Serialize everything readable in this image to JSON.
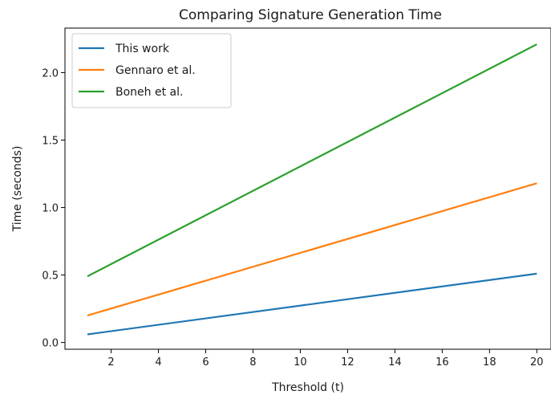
{
  "chart_data": {
    "type": "line",
    "title": "Comparing Signature Generation Time",
    "xlabel": "Threshold (t)",
    "ylabel": "Time (seconds)",
    "xlim": [
      0.05,
      20.6
    ],
    "ylim": [
      -0.05,
      2.33
    ],
    "xticks": [
      2,
      4,
      6,
      8,
      10,
      12,
      14,
      16,
      18,
      20
    ],
    "yticks": [
      0.0,
      0.5,
      1.0,
      1.5,
      2.0
    ],
    "xtick_labels": [
      "2",
      "4",
      "6",
      "8",
      "10",
      "12",
      "14",
      "16",
      "18",
      "20"
    ],
    "ytick_labels": [
      "0.0",
      "0.5",
      "1.0",
      "1.5",
      "2.0"
    ],
    "grid": false,
    "legend_position": "upper left",
    "series": [
      {
        "name": "This work",
        "color": "#1f77b4",
        "x": [
          1,
          20
        ],
        "y": [
          0.06,
          0.51
        ]
      },
      {
        "name": "Gennaro et al.",
        "color": "#ff7f0e",
        "x": [
          1,
          20
        ],
        "y": [
          0.2,
          1.18
        ]
      },
      {
        "name": "Boneh et al.",
        "color": "#2ca02c",
        "x": [
          1,
          20
        ],
        "y": [
          0.49,
          2.21
        ]
      }
    ]
  }
}
